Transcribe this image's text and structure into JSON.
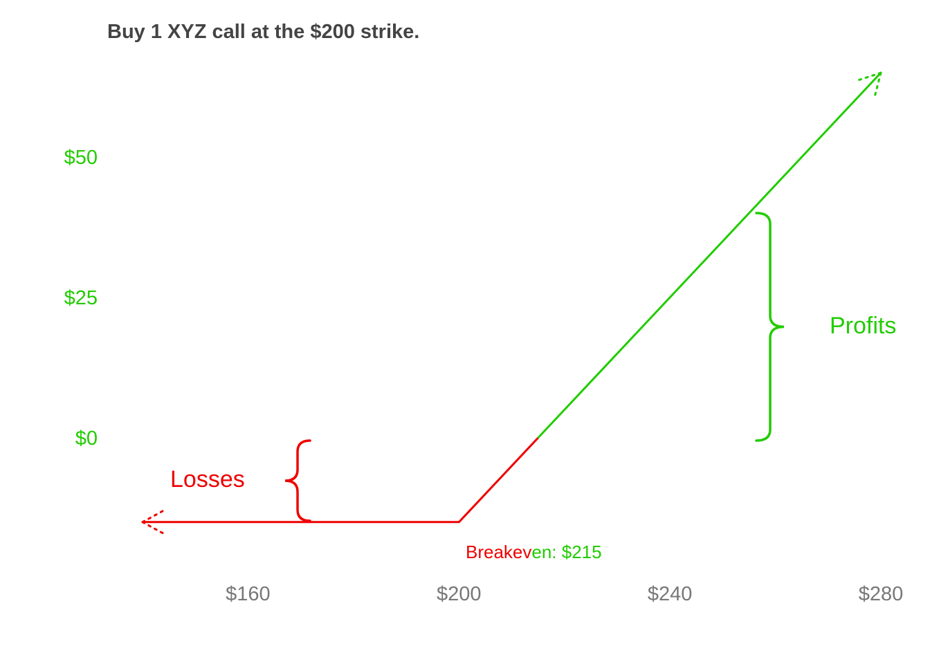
{
  "chart_data": {
    "type": "line",
    "title": "Buy 1 XYZ call at the $200 strike.",
    "xlabel": "",
    "ylabel": "",
    "xlim": [
      140,
      280
    ],
    "ylim": [
      -15,
      65
    ],
    "x_ticks": [
      {
        "value": 160,
        "label": "$160"
      },
      {
        "value": 200,
        "label": "$200"
      },
      {
        "value": 240,
        "label": "$240"
      },
      {
        "value": 280,
        "label": "$280"
      }
    ],
    "y_ticks": [
      {
        "value": 0,
        "label": "$0"
      },
      {
        "value": 25,
        "label": "$25"
      },
      {
        "value": 50,
        "label": "$50"
      }
    ],
    "grid": false,
    "series": [
      {
        "segment": "loss",
        "color": "#ee0000",
        "x": [
          140,
          200,
          215
        ],
        "y": [
          -15,
          -15,
          0
        ]
      },
      {
        "segment": "profit",
        "color": "#22cc00",
        "x": [
          215,
          280
        ],
        "y": [
          0,
          65
        ]
      }
    ],
    "annotations": {
      "losses_label": "Losses",
      "profits_label": "Profits",
      "breakeven_prefix": "Breakev",
      "breakeven_suffix": "en: $215"
    },
    "colors": {
      "loss": "#ee0000",
      "profit": "#22cc00",
      "title": "#444444",
      "tick": "#777777"
    }
  }
}
